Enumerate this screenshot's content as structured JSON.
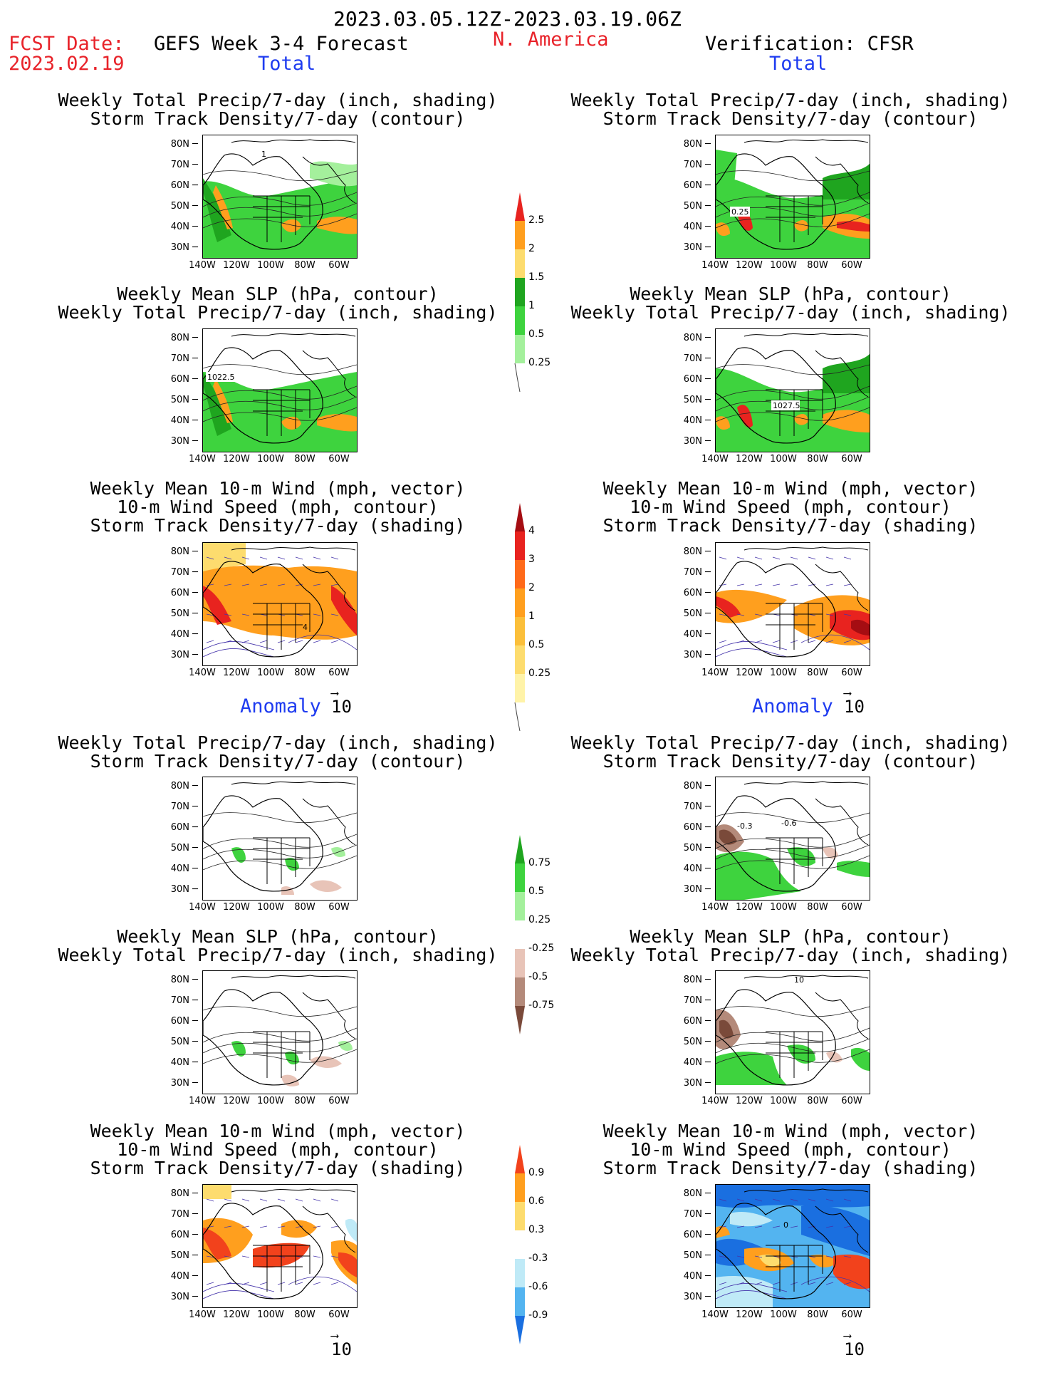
{
  "header": {
    "date_range": "2023.03.05.12Z-2023.03.19.06Z",
    "fcst_date_label": "FCST Date:",
    "fcst_date": "2023.02.19",
    "product": "GEFS Week 3-4 Forecast",
    "region": "N. America",
    "verification": "Verification: CFSR"
  },
  "sections": {
    "total": "Total",
    "anomaly": "Anomaly"
  },
  "panel_titles": {
    "precip_storm": "Weekly Total Precip/7-day (inch, shading)\nStorm Track Density/7-day (contour)",
    "slp_precip": "Weekly Mean SLP (hPa, contour)\nWeekly Total Precip/7-day (inch, shading)",
    "wind_storm": "Weekly Mean 10-m Wind (mph, vector)\n10-m Wind Speed (mph, contour)\nStorm Track Density/7-day (shading)"
  },
  "axes": {
    "lat_ticks": [
      "80N",
      "70N",
      "60N",
      "50N",
      "40N",
      "30N"
    ],
    "lon_ticks": [
      "140W",
      "120W",
      "100W",
      "80W",
      "60W"
    ]
  },
  "vector_ref": "10",
  "contour_labels": {
    "fc_total_precip": "1",
    "fc_total_slp": "1022.5",
    "fc_total_wind": "4",
    "ob_total_precip": "0.25",
    "ob_total_slp": "1027.5",
    "ob_anom_precip_a": "-0.3",
    "ob_anom_precip_b": "-0.6",
    "ob_anom_slp": "10",
    "ob_anom_wind": "0"
  },
  "colorbars": {
    "precip_total": {
      "labels": [
        "2.5",
        "2",
        "1.5",
        "1",
        "0.5",
        "0.25"
      ],
      "colors": [
        "#e8231f",
        "#ff9f1e",
        "#fddc6e",
        "#1fa51f",
        "#3ed33e",
        "#a4f09c"
      ]
    },
    "storm_total": {
      "labels": [
        "4",
        "3",
        "2",
        "1",
        "0.5",
        "0.25"
      ],
      "colors": [
        "#a50d12",
        "#e8231f",
        "#ff6a1a",
        "#ff9f1e",
        "#fbbf3a",
        "#fddc6e",
        "#fff3a8"
      ]
    },
    "precip_anom": {
      "labels": [
        "0.75",
        "0.5",
        "0.25",
        "-0.25",
        "-0.5",
        "-0.75"
      ],
      "colors": [
        "#1fa51f",
        "#3ed33e",
        "#a4f09c",
        "#ffffff",
        "#e8c4b8",
        "#b48a7a",
        "#7a4a3a"
      ]
    },
    "storm_anom": {
      "labels": [
        "0.9",
        "0.6",
        "0.3",
        "-0.3",
        "-0.6",
        "-0.9"
      ],
      "colors": [
        "#f2421c",
        "#ff9f1e",
        "#fddc6e",
        "#ffffff",
        "#bfeaf7",
        "#53b4f0",
        "#1a6fe0"
      ]
    }
  }
}
